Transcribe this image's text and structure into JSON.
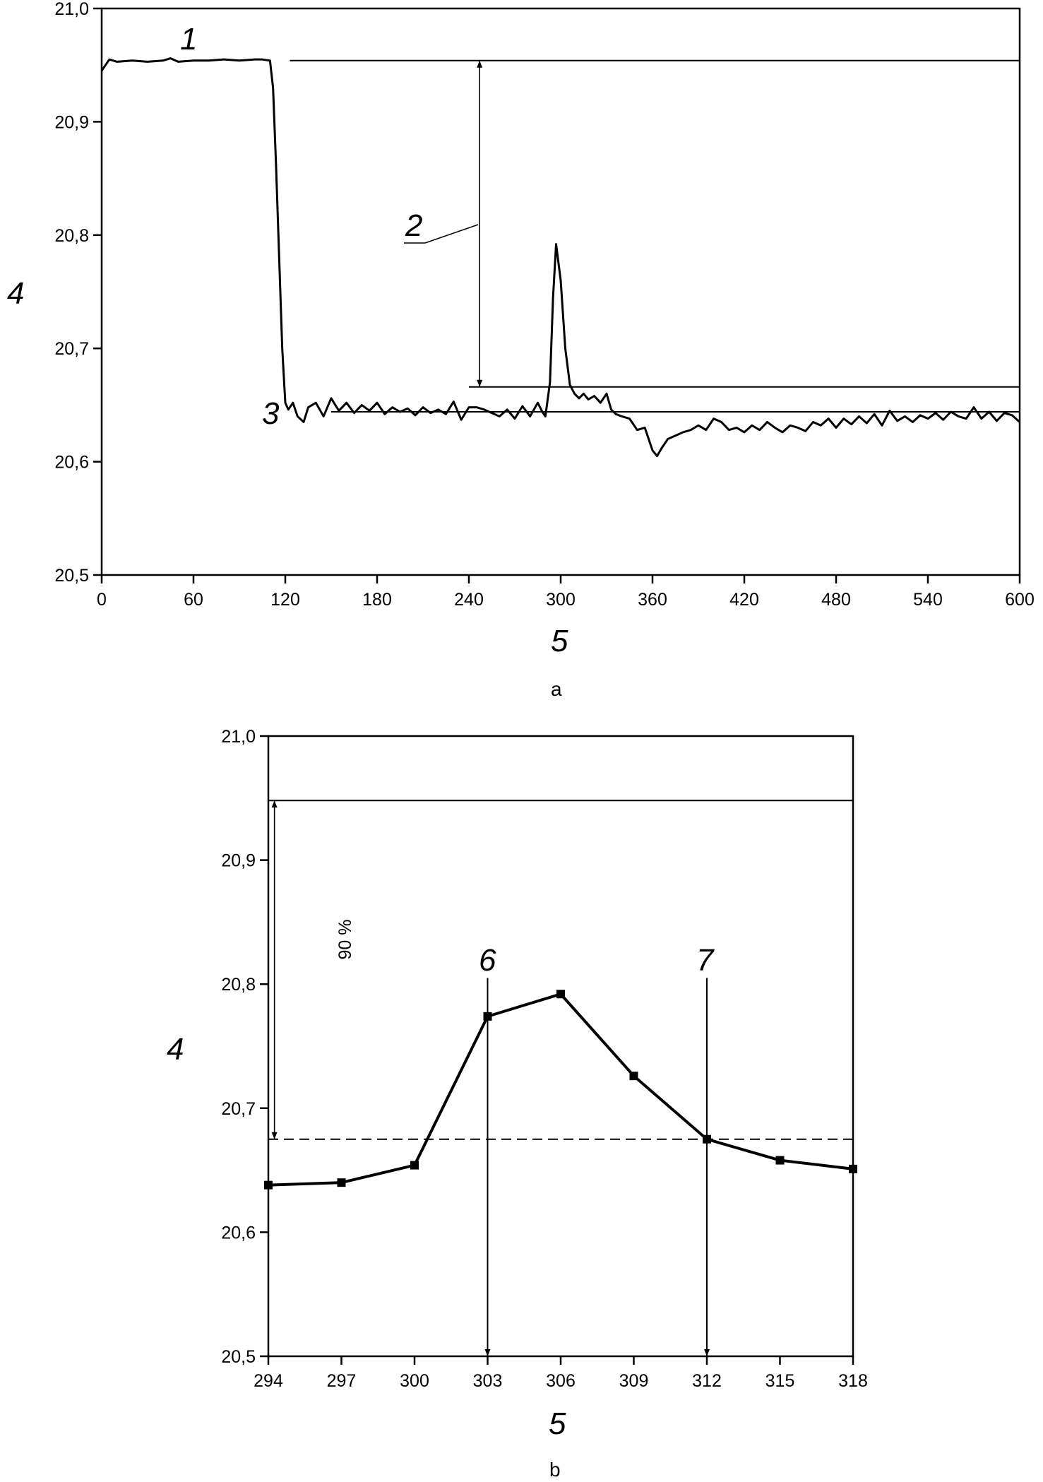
{
  "chart_data": [
    {
      "panel": "a",
      "type": "line",
      "xlabel": "5",
      "ylabel": "4",
      "xlim": [
        0,
        600
      ],
      "ylim": [
        20.5,
        21.0
      ],
      "x_ticks": [
        "0",
        "60",
        "120",
        "180",
        "240",
        "300",
        "360",
        "420",
        "480",
        "540",
        "600"
      ],
      "y_ticks": [
        "20,5",
        "20,6",
        "20,7",
        "20,8",
        "20,9",
        "21,0"
      ],
      "grid": false,
      "series": [
        {
          "x": [
            0,
            5,
            10,
            20,
            30,
            40,
            45,
            50,
            60,
            70,
            80,
            90,
            100,
            105,
            110,
            112,
            114,
            116,
            118,
            120,
            122,
            125,
            128,
            132,
            135,
            140,
            145,
            150,
            155,
            160,
            165,
            170,
            175,
            180,
            185,
            190,
            195,
            200,
            205,
            210,
            215,
            220,
            225,
            230,
            235,
            240,
            245,
            250,
            255,
            260,
            265,
            270,
            275,
            280,
            285,
            288,
            290,
            293,
            295,
            297,
            300,
            303,
            306,
            309,
            312,
            315,
            318,
            322,
            326,
            330,
            333,
            336,
            340,
            345,
            350,
            355,
            360,
            363,
            366,
            370,
            375,
            380,
            385,
            390,
            395,
            400,
            405,
            410,
            415,
            420,
            425,
            430,
            435,
            440,
            445,
            450,
            455,
            460,
            465,
            470,
            475,
            480,
            485,
            490,
            495,
            500,
            505,
            510,
            515,
            520,
            525,
            530,
            535,
            540,
            545,
            550,
            555,
            560,
            565,
            570,
            575,
            580,
            585,
            590,
            595,
            600
          ],
          "y": [
            20.945,
            20.955,
            20.953,
            20.954,
            20.953,
            20.954,
            20.956,
            20.953,
            20.954,
            20.954,
            20.955,
            20.954,
            20.955,
            20.955,
            20.954,
            20.93,
            20.86,
            20.78,
            20.7,
            20.652,
            20.646,
            20.652,
            20.64,
            20.635,
            20.648,
            20.652,
            20.64,
            20.656,
            20.645,
            20.652,
            20.643,
            20.65,
            20.645,
            20.652,
            20.642,
            20.648,
            20.644,
            20.647,
            20.641,
            20.648,
            20.643,
            20.646,
            20.642,
            20.653,
            20.637,
            20.648,
            20.648,
            20.646,
            20.643,
            20.64,
            20.646,
            20.638,
            20.649,
            20.64,
            20.652,
            20.644,
            20.64,
            20.67,
            20.745,
            20.792,
            20.76,
            20.7,
            20.668,
            20.66,
            20.656,
            20.66,
            20.655,
            20.658,
            20.652,
            20.66,
            20.646,
            20.642,
            20.64,
            20.638,
            20.628,
            20.63,
            20.61,
            20.605,
            20.612,
            20.62,
            20.623,
            20.626,
            20.628,
            20.632,
            20.628,
            20.638,
            20.635,
            20.628,
            20.63,
            20.626,
            20.632,
            20.628,
            20.635,
            20.63,
            20.626,
            20.632,
            20.63,
            20.627,
            20.635,
            20.632,
            20.638,
            20.63,
            20.638,
            20.633,
            20.64,
            20.634,
            20.642,
            20.632,
            20.645,
            20.636,
            20.64,
            20.635,
            20.641,
            20.638,
            20.643,
            20.637,
            20.644,
            20.64,
            20.638,
            20.648,
            20.638,
            20.644,
            20.636,
            20.643,
            20.641,
            20.635
          ]
        }
      ],
      "reference_lines": [
        {
          "y": 20.954,
          "x_from": 123,
          "x_to": 600
        },
        {
          "y": 20.666,
          "x_from": 240,
          "x_to": 600
        },
        {
          "y": 20.644,
          "x_from": 150,
          "x_to": 600
        }
      ],
      "span_arrow": {
        "x": 247,
        "y_from": 20.954,
        "y_to": 20.666
      },
      "annotations": [
        "1",
        "2",
        "3"
      ]
    },
    {
      "panel": "b",
      "type": "line",
      "xlabel": "5",
      "ylabel": "4",
      "xlim": [
        294,
        318
      ],
      "ylim": [
        20.5,
        21.0
      ],
      "x_ticks": [
        "294",
        "297",
        "300",
        "303",
        "306",
        "309",
        "312",
        "315",
        "318"
      ],
      "y_ticks": [
        "20,5",
        "20,6",
        "20,7",
        "20,8",
        "20,9",
        "21,0"
      ],
      "grid": false,
      "series": [
        {
          "markers": "square",
          "x": [
            294,
            297,
            300,
            303,
            306,
            309,
            312,
            315,
            318
          ],
          "y": [
            20.638,
            20.64,
            20.654,
            20.774,
            20.792,
            20.726,
            20.675,
            20.658,
            20.651
          ]
        }
      ],
      "reference_lines": [
        {
          "y": 20.948,
          "style": "solid"
        },
        {
          "y": 20.675,
          "style": "dashed"
        }
      ],
      "span_arrow": {
        "x": 294.25,
        "y_from": 20.948,
        "y_to": 20.675,
        "label": "90 %"
      },
      "vertical_arrows": [
        {
          "x": 303,
          "label": "6"
        },
        {
          "x": 312,
          "label": "7"
        }
      ]
    }
  ]
}
